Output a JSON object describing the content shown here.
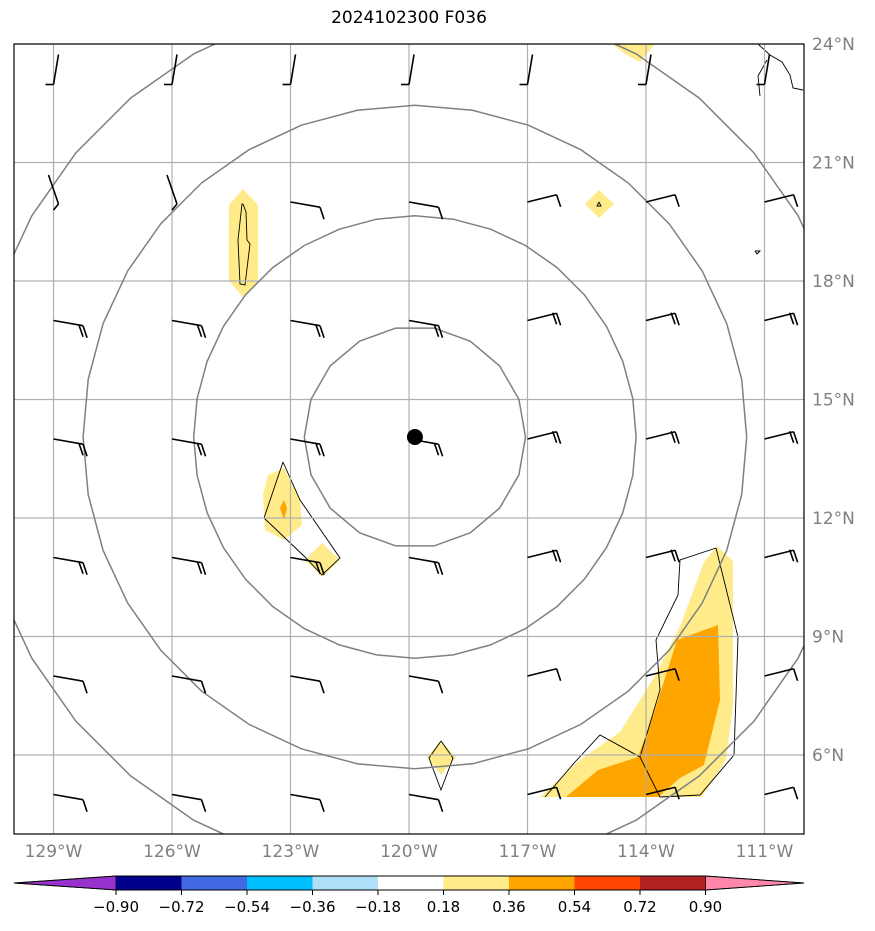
{
  "title": "2024102300 F036",
  "map": {
    "lon_range": [
      -130,
      -110
    ],
    "lat_range": [
      4,
      24
    ],
    "lon_ticks": [
      {
        "value": -129,
        "label": "129°W"
      },
      {
        "value": -126,
        "label": "126°W"
      },
      {
        "value": -123,
        "label": "123°W"
      },
      {
        "value": -120,
        "label": "120°W"
      },
      {
        "value": -117,
        "label": "117°W"
      },
      {
        "value": -114,
        "label": "114°W"
      },
      {
        "value": -111,
        "label": "111°W"
      }
    ],
    "lat_ticks": [
      {
        "value": 24,
        "label": "24°N"
      },
      {
        "value": 21,
        "label": "21°N"
      },
      {
        "value": 18,
        "label": "18°N"
      },
      {
        "value": 15,
        "label": "15°N"
      },
      {
        "value": 12,
        "label": "12°N"
      },
      {
        "value": 9,
        "label": "9°N"
      },
      {
        "value": 6,
        "label": "6°N"
      }
    ],
    "center": {
      "lon": -119.85,
      "lat": 14.05
    },
    "range_rings_deg": [
      2.8,
      5.6,
      8.4,
      11.2
    ],
    "grid_color": "#b0b0b0",
    "ring_color": "#808080",
    "tick_label_color": "#808080"
  },
  "colorbar": {
    "ticks": [
      "−0.90",
      "−0.72",
      "−0.54",
      "−0.36",
      "−0.18",
      "0.18",
      "0.36",
      "0.54",
      "0.72",
      "0.90"
    ],
    "colors": [
      "#9932cc",
      "#00008b",
      "#4169e1",
      "#00bfff",
      "#b0e0f8",
      "#ffffff",
      "#ffeb8a",
      "#ffa500",
      "#ff4500",
      "#b22222",
      "#ff88aa"
    ]
  }
}
